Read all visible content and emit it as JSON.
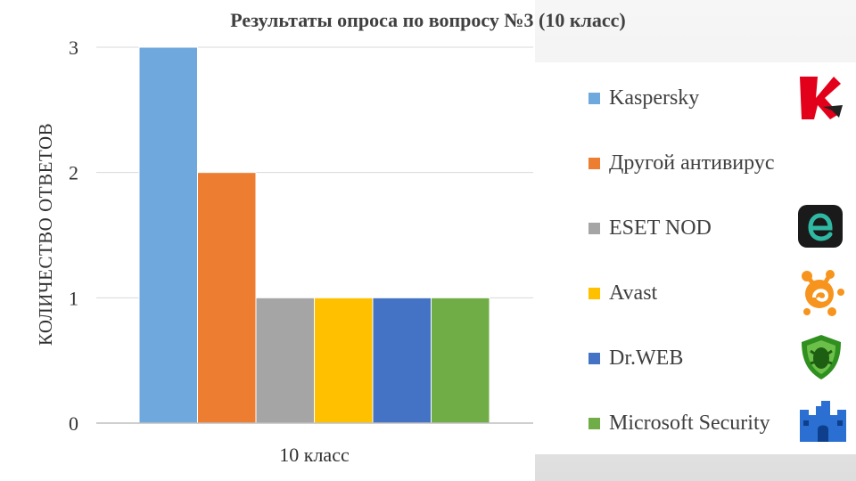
{
  "chart_data": {
    "type": "bar",
    "title": "Результаты опроса по вопросу №3 (10 класс)",
    "ylabel": "КОЛИЧЕСТВО ОТВЕТОВ",
    "xlabel": "",
    "categories": [
      "10 класс"
    ],
    "ylim": [
      0,
      3
    ],
    "yticks": [
      0,
      1,
      2,
      3
    ],
    "grid": true,
    "legend_position": "right",
    "series": [
      {
        "name": "Kaspersky",
        "values": [
          3
        ],
        "color": "#6fa8dc",
        "icon": "kaspersky-logo-icon"
      },
      {
        "name": "Другой антивирус",
        "values": [
          2
        ],
        "color": "#ed7d31",
        "icon": ""
      },
      {
        "name": "ESET NOD",
        "values": [
          1
        ],
        "color": "#a5a5a5",
        "icon": "eset-logo-icon"
      },
      {
        "name": "Avast",
        "values": [
          1
        ],
        "color": "#ffc000",
        "icon": "avast-logo-icon"
      },
      {
        "name": "Dr.WEB",
        "values": [
          1
        ],
        "color": "#4472c4",
        "icon": "drweb-logo-icon"
      },
      {
        "name": "Microsoft Security",
        "values": [
          1
        ],
        "color": "#70ad47",
        "icon": "microsoft-security-logo-icon"
      }
    ]
  }
}
